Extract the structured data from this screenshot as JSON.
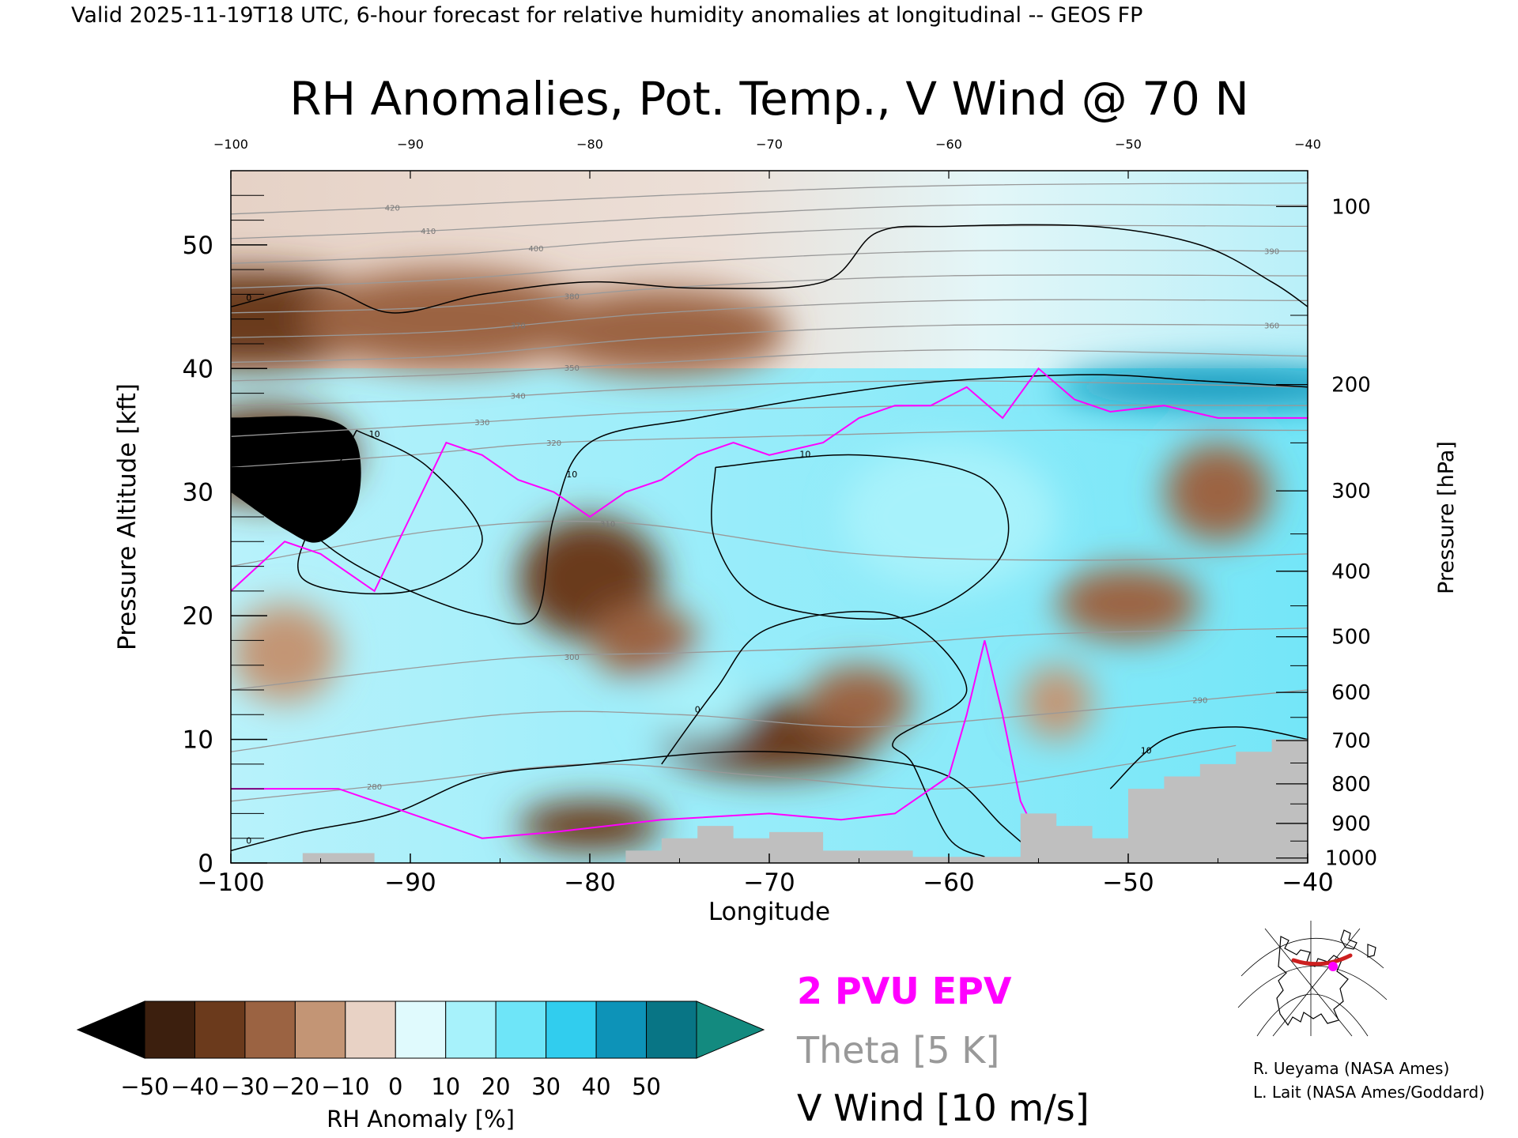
{
  "header": {
    "valid_line": "Valid 2025-11-19T18 UTC, 6-hour forecast for relative humidity anomalies at longitudinal -- GEOS FP"
  },
  "chart_data": {
    "type": "heatmap",
    "title": "RH Anomalies, Pot. Temp., V Wind @ 70 N",
    "xlabel": "Longitude",
    "ylabel_left": "Pressure Altitude [kft]",
    "ylabel_right": "Pressure [hPa]",
    "xlim": [
      -100,
      -40
    ],
    "ylim": [
      0,
      56
    ],
    "x_ticks": [
      -100,
      -90,
      -80,
      -70,
      -60,
      -50,
      -40
    ],
    "x_tick_labels": [
      "−100",
      "−90",
      "−80",
      "−70",
      "−60",
      "−50",
      "−40"
    ],
    "top_ticks": [
      -100,
      -90,
      -80,
      -70,
      -60,
      -50,
      -40
    ],
    "top_tick_labels": [
      "−100",
      "−90",
      "−80",
      "−70",
      "−60",
      "−50",
      "−40"
    ],
    "y_ticks": [
      0,
      10,
      20,
      30,
      40,
      50
    ],
    "y_tick_labels": [
      "0",
      "10",
      "20",
      "30",
      "40",
      "50"
    ],
    "pressure_ticks": [
      {
        "hpa": 100,
        "kft": 53.1,
        "label": "100"
      },
      {
        "hpa": 200,
        "kft": 38.7,
        "label": "200"
      },
      {
        "hpa": 300,
        "kft": 30.1,
        "label": "300"
      },
      {
        "hpa": 400,
        "kft": 23.6,
        "label": "400"
      },
      {
        "hpa": 500,
        "kft": 18.3,
        "label": "500"
      },
      {
        "hpa": 600,
        "kft": 13.8,
        "label": "600"
      },
      {
        "hpa": 700,
        "kft": 9.9,
        "label": "700"
      },
      {
        "hpa": 800,
        "kft": 6.4,
        "label": "800"
      },
      {
        "hpa": 900,
        "kft": 3.2,
        "label": "900"
      },
      {
        "hpa": 1000,
        "kft": 0.4,
        "label": "1000"
      }
    ],
    "rh_blobs": [
      {
        "lon": -99,
        "alt": 44,
        "rx": 8,
        "ry": 4,
        "v": -32
      },
      {
        "lon": -88,
        "alt": 44,
        "rx": 8,
        "ry": 4,
        "v": -28
      },
      {
        "lon": -76,
        "alt": 43,
        "rx": 7,
        "ry": 3.5,
        "v": -25
      },
      {
        "lon": -98,
        "alt": 33,
        "rx": 5,
        "ry": 4,
        "v": -40
      },
      {
        "lon": -80,
        "alt": 23,
        "rx": 4,
        "ry": 5,
        "v": -35
      },
      {
        "lon": -77,
        "alt": 18,
        "rx": 3,
        "ry": 3,
        "v": -30
      },
      {
        "lon": -70,
        "alt": 10,
        "rx": 6,
        "ry": 3,
        "v": -35
      },
      {
        "lon": -65,
        "alt": 13,
        "rx": 3,
        "ry": 3,
        "v": -25
      },
      {
        "lon": -80,
        "alt": 3,
        "rx": 4,
        "ry": 2,
        "v": -35
      },
      {
        "lon": -97,
        "alt": 17,
        "rx": 3,
        "ry": 4,
        "v": -20
      },
      {
        "lon": -50,
        "alt": 21,
        "rx": 4,
        "ry": 3,
        "v": -25
      },
      {
        "lon": -45,
        "alt": 30,
        "rx": 3,
        "ry": 4,
        "v": -25
      },
      {
        "lon": -54,
        "alt": 13,
        "rx": 2,
        "ry": 3,
        "v": -15
      },
      {
        "lon": -45,
        "alt": 38.5,
        "rx": 9,
        "ry": 1.6,
        "v": 40
      },
      {
        "lon": -74,
        "alt": 13,
        "rx": 3,
        "ry": 3,
        "v": 12
      },
      {
        "lon": -60,
        "alt": 28,
        "rx": 6,
        "ry": 6,
        "v": 12
      }
    ],
    "theta_contours": [
      {
        "label": "280",
        "label_lon": -92,
        "points": [
          [
            -100,
            5
          ],
          [
            -90,
            6.5
          ],
          [
            -80,
            8
          ],
          [
            -70,
            7
          ],
          [
            -60,
            6
          ],
          [
            -50,
            8
          ],
          [
            -44,
            9.5
          ]
        ]
      },
      {
        "label": "290",
        "label_lon": -46,
        "points": [
          [
            -100,
            9
          ],
          [
            -85,
            12
          ],
          [
            -75,
            12
          ],
          [
            -65,
            11
          ],
          [
            -55,
            12
          ],
          [
            -40,
            14
          ]
        ]
      },
      {
        "label": "300",
        "label_lon": -81,
        "points": [
          [
            -100,
            14
          ],
          [
            -85,
            16.5
          ],
          [
            -75,
            17
          ],
          [
            -65,
            17.5
          ],
          [
            -55,
            18.5
          ],
          [
            -40,
            19
          ]
        ]
      },
      {
        "label": "310",
        "label_lon": -79,
        "points": [
          [
            -100,
            24
          ],
          [
            -88,
            27
          ],
          [
            -78,
            27.5
          ],
          [
            -65,
            25
          ],
          [
            -52,
            24.5
          ],
          [
            -40,
            25
          ]
        ]
      },
      {
        "label": "320",
        "label_lon": -82,
        "points": [
          [
            -100,
            32
          ],
          [
            -90,
            33
          ],
          [
            -82,
            34
          ],
          [
            -70,
            34.5
          ],
          [
            -55,
            35
          ],
          [
            -40,
            35
          ]
        ]
      },
      {
        "label": "330",
        "label_lon": -86,
        "points": [
          [
            -100,
            34.5
          ],
          [
            -88,
            35.5
          ],
          [
            -76,
            36.5
          ],
          [
            -60,
            37
          ],
          [
            -40,
            37
          ]
        ]
      },
      {
        "label": "340",
        "label_lon": -84,
        "points": [
          [
            -100,
            37
          ],
          [
            -88,
            37.5
          ],
          [
            -75,
            38.5
          ],
          [
            -60,
            39
          ],
          [
            -40,
            38.5
          ]
        ]
      },
      {
        "label": "350",
        "label_lon": -81,
        "points": [
          [
            -100,
            39
          ],
          [
            -88,
            39.5
          ],
          [
            -76,
            40.5
          ],
          [
            -60,
            41.5
          ],
          [
            -40,
            41
          ]
        ]
      },
      {
        "label": "360",
        "label_lon": -42,
        "points": [
          [
            -100,
            40.5
          ],
          [
            -88,
            41
          ],
          [
            -76,
            42.5
          ],
          [
            -60,
            43.5
          ],
          [
            -40,
            43.5
          ]
        ]
      },
      {
        "label": "370",
        "label_lon": -84,
        "points": [
          [
            -100,
            42.5
          ],
          [
            -88,
            43
          ],
          [
            -76,
            44.5
          ],
          [
            -60,
            45.5
          ],
          [
            -40,
            45.5
          ]
        ]
      },
      {
        "label": "380",
        "label_lon": -81,
        "points": [
          [
            -100,
            44.5
          ],
          [
            -88,
            45
          ],
          [
            -76,
            46.5
          ],
          [
            -60,
            47.5
          ],
          [
            -40,
            47.5
          ]
        ]
      },
      {
        "label": "390",
        "label_lon": -42,
        "points": [
          [
            -100,
            46.5
          ],
          [
            -88,
            47.2
          ],
          [
            -76,
            48.5
          ],
          [
            -60,
            49.5
          ],
          [
            -40,
            49.5
          ]
        ]
      },
      {
        "label": "400",
        "label_lon": -83,
        "points": [
          [
            -100,
            48.5
          ],
          [
            -88,
            49.2
          ],
          [
            -76,
            50.5
          ],
          [
            -60,
            51.5
          ],
          [
            -40,
            51.5
          ]
        ]
      },
      {
        "label": "410",
        "label_lon": -89,
        "points": [
          [
            -100,
            50.5
          ],
          [
            -88,
            51.2
          ],
          [
            -76,
            52.2
          ],
          [
            -60,
            53.2
          ],
          [
            -40,
            53.2
          ]
        ]
      },
      {
        "label": "420",
        "label_lon": -91,
        "points": [
          [
            -100,
            52.5
          ],
          [
            -88,
            53.2
          ],
          [
            -76,
            54
          ],
          [
            -60,
            54.8
          ],
          [
            -40,
            55
          ]
        ]
      }
    ],
    "vwind_contours": [
      {
        "label": "0",
        "label_lon": -99,
        "points": [
          [
            -100,
            45
          ],
          [
            -95,
            46.5
          ],
          [
            -91,
            44.5
          ],
          [
            -86,
            46
          ],
          [
            -80,
            47
          ],
          [
            -74,
            46.5
          ],
          [
            -67,
            47
          ],
          [
            -64,
            51
          ],
          [
            -60,
            51.5
          ],
          [
            -52,
            51.5
          ],
          [
            -46,
            50
          ],
          [
            -42,
            47
          ],
          [
            -40,
            45
          ]
        ]
      },
      {
        "label": "10",
        "label_lon": -81,
        "points": [
          [
            -98,
            30
          ],
          [
            -94,
            25
          ],
          [
            -90,
            22
          ],
          [
            -86,
            20
          ],
          [
            -83,
            20
          ],
          [
            -82,
            28
          ],
          [
            -80,
            34
          ],
          [
            -74,
            36
          ],
          [
            -66,
            38
          ],
          [
            -60,
            39
          ],
          [
            -52,
            39.5
          ],
          [
            -46,
            39
          ],
          [
            -40,
            38.5
          ]
        ]
      },
      {
        "label": "10",
        "label_lon": -92,
        "points": [
          [
            -93,
            35
          ],
          [
            -89,
            32
          ],
          [
            -86,
            26
          ],
          [
            -90,
            22
          ],
          [
            -96,
            23
          ],
          [
            -95,
            29
          ],
          [
            -93,
            35
          ]
        ]
      },
      {
        "label": "10",
        "label_lon": -68,
        "points": [
          [
            -73,
            32
          ],
          [
            -65,
            33
          ],
          [
            -58,
            31
          ],
          [
            -57,
            25
          ],
          [
            -62,
            20
          ],
          [
            -70,
            21
          ],
          [
            -73,
            26
          ],
          [
            -73,
            32
          ]
        ]
      },
      {
        "label": "0",
        "label_lon": -74,
        "points": [
          [
            -76,
            8
          ],
          [
            -73,
            14
          ],
          [
            -70,
            19
          ],
          [
            -63,
            20
          ],
          [
            -59,
            14
          ],
          [
            -63,
            10
          ],
          [
            -62,
            8
          ],
          [
            -60,
            2
          ],
          [
            -58,
            0.5
          ]
        ]
      },
      {
        "label": "10",
        "label_lon": -49,
        "points": [
          [
            -51,
            6
          ],
          [
            -48,
            10
          ],
          [
            -44,
            11
          ],
          [
            -40,
            10
          ]
        ]
      },
      {
        "label": "0",
        "label_lon": -99,
        "points": [
          [
            -100,
            1
          ],
          [
            -96,
            2.5
          ],
          [
            -91,
            4
          ],
          [
            -86,
            7
          ],
          [
            -80,
            8
          ],
          [
            -72,
            9
          ],
          [
            -65,
            8.5
          ],
          [
            -60,
            7
          ],
          [
            -57,
            3
          ],
          [
            -55,
            0.5
          ]
        ]
      }
    ],
    "epv_2pvu": [
      [
        -100,
        22
      ],
      [
        -97,
        26
      ],
      [
        -95,
        25
      ],
      [
        -92,
        22
      ],
      [
        -90,
        28
      ],
      [
        -88,
        34
      ],
      [
        -86,
        33
      ],
      [
        -84,
        31
      ],
      [
        -82,
        30
      ],
      [
        -80,
        28
      ],
      [
        -78,
        30
      ],
      [
        -76,
        31
      ],
      [
        -74,
        33
      ],
      [
        -72,
        34
      ],
      [
        -70,
        33
      ],
      [
        -67,
        34
      ],
      [
        -65,
        36
      ],
      [
        -63,
        37
      ],
      [
        -61,
        37
      ],
      [
        -59,
        38.5
      ],
      [
        -57,
        36
      ],
      [
        -55,
        40
      ],
      [
        -53,
        37.5
      ],
      [
        -51,
        36.5
      ],
      [
        -48,
        37
      ],
      [
        -45,
        36
      ],
      [
        -42,
        36
      ],
      [
        -40,
        36
      ]
    ],
    "epv_2pvu_low": [
      [
        -100,
        6
      ],
      [
        -94,
        6
      ],
      [
        -90,
        4
      ],
      [
        -86,
        2
      ],
      [
        -82,
        2.5
      ],
      [
        -76,
        3.5
      ],
      [
        -70,
        4
      ],
      [
        -66,
        3.5
      ],
      [
        -63,
        4
      ],
      [
        -60,
        7
      ],
      [
        -59,
        12
      ],
      [
        -58,
        18
      ],
      [
        -57,
        12
      ],
      [
        -56,
        5
      ],
      [
        -55,
        2
      ]
    ],
    "terrain_kft": [
      [
        -100,
        0
      ],
      [
        -96,
        0
      ],
      [
        -96,
        0.8
      ],
      [
        -92,
        0.8
      ],
      [
        -92,
        0
      ],
      [
        -78,
        0
      ],
      [
        -78,
        1
      ],
      [
        -76,
        1
      ],
      [
        -76,
        2
      ],
      [
        -74,
        2
      ],
      [
        -74,
        3
      ],
      [
        -72,
        3
      ],
      [
        -72,
        2
      ],
      [
        -70,
        2
      ],
      [
        -70,
        2.5
      ],
      [
        -67,
        2.5
      ],
      [
        -67,
        1
      ],
      [
        -62,
        1
      ],
      [
        -62,
        0.5
      ],
      [
        -56,
        0.5
      ],
      [
        -56,
        4
      ],
      [
        -54,
        4
      ],
      [
        -54,
        3
      ],
      [
        -52,
        3
      ],
      [
        -52,
        2
      ],
      [
        -50,
        2
      ],
      [
        -50,
        6
      ],
      [
        -48,
        6
      ],
      [
        -48,
        7
      ],
      [
        -46,
        7
      ],
      [
        -46,
        8
      ],
      [
        -44,
        8
      ],
      [
        -44,
        9
      ],
      [
        -42,
        9
      ],
      [
        -42,
        10
      ],
      [
        -40,
        10
      ],
      [
        -40,
        0
      ]
    ],
    "colorbar": {
      "label": "RH Anomaly [%]",
      "min": -50,
      "max": 50,
      "step": 10,
      "tick_labels": [
        "−50",
        "−40",
        "−30",
        "−20",
        "−10",
        "0",
        "10",
        "20",
        "30",
        "40",
        "50"
      ],
      "colors": [
        "#000000",
        "#3c1f0e",
        "#6b3a1c",
        "#9b6342",
        "#c39575",
        "#e8d2c5",
        "#e0fafd",
        "#a7f2fb",
        "#6ee5f8",
        "#31cdee",
        "#0d93b8",
        "#087585",
        "#138a7f"
      ]
    },
    "legend": {
      "epv_label": "2 PVU EPV",
      "theta_label": "Theta [5 K]",
      "vwind_label": "V Wind [10 m/s]"
    },
    "colors": {
      "epv": "#ff00ff",
      "theta": "#999999",
      "vwind": "#000000",
      "terrain": "#bfbfbf"
    }
  },
  "credits": {
    "line1": "R. Ueyama (NASA Ames)",
    "line2": "L. Lait (NASA Ames/Goddard)"
  }
}
